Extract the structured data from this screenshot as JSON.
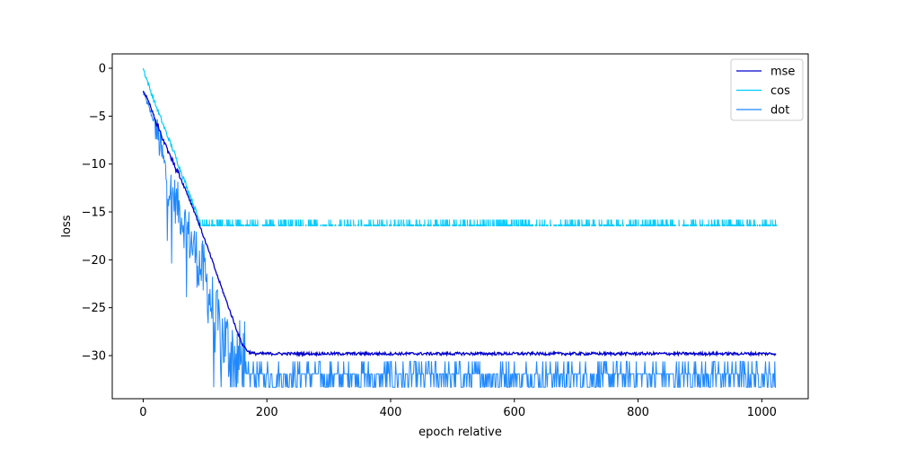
{
  "chart_data": {
    "type": "line",
    "title": "",
    "xlabel": "epoch relative",
    "ylabel": "loss",
    "xlim": [
      -50,
      1075
    ],
    "ylim": [
      -34.5,
      1.5
    ],
    "xticks": [
      0,
      200,
      400,
      600,
      800,
      1000
    ],
    "yticks": [
      0,
      -5,
      -10,
      -15,
      -20,
      -25,
      -30
    ],
    "xtick_labels": [
      "0",
      "200",
      "400",
      "600",
      "800",
      "1000"
    ],
    "ytick_labels": [
      "0",
      "−5",
      "−10",
      "−15",
      "−20",
      "−25",
      "−30"
    ],
    "grid": false,
    "legend_position": "top-right",
    "series": [
      {
        "name": "mse",
        "color": "#0000cd",
        "x": [
          0,
          10,
          20,
          30,
          40,
          50,
          60,
          70,
          80,
          90,
          100,
          110,
          120,
          130,
          140,
          150,
          160,
          170,
          180,
          200,
          250,
          300,
          400,
          500,
          600,
          700,
          800,
          900,
          1000,
          1023
        ],
        "y": [
          -2.3,
          -3.7,
          -5.5,
          -7.2,
          -8.6,
          -10.0,
          -11.4,
          -12.9,
          -14.5,
          -16.2,
          -18.0,
          -19.8,
          -21.7,
          -23.5,
          -25.3,
          -27.1,
          -28.8,
          -29.6,
          -29.8,
          -29.8,
          -29.8,
          -29.8,
          -29.8,
          -29.8,
          -29.8,
          -29.8,
          -29.8,
          -29.8,
          -29.8,
          -29.8
        ],
        "noise": 0.15
      },
      {
        "name": "cos",
        "color": "#00ccff",
        "x": [
          0,
          10,
          20,
          30,
          40,
          50,
          60,
          70,
          80,
          90,
          100,
          200,
          300,
          400,
          500,
          600,
          700,
          800,
          900,
          1000,
          1023
        ],
        "y": [
          0.0,
          -2.0,
          -3.8,
          -5.5,
          -7.2,
          -8.8,
          -10.6,
          -12.3,
          -14.0,
          -15.8,
          -16.5,
          -16.5,
          -16.5,
          -16.5,
          -16.5,
          -16.5,
          -16.5,
          -16.5,
          -16.5,
          -16.5,
          -16.5
        ],
        "levels": [
          -16.5,
          -15.8
        ]
      },
      {
        "name": "dot",
        "color": "#1e88ff",
        "x": [
          0,
          20,
          40,
          60,
          80,
          100,
          120,
          140,
          160,
          180,
          200,
          400,
          600,
          800,
          1000,
          1023
        ],
        "y": [
          -2.5,
          -6.0,
          -12.0,
          -15.0,
          -18.5,
          -22.0,
          -27.0,
          -29.5,
          -31.0,
          -31.5,
          -31.5,
          -31.5,
          -31.5,
          -31.5,
          -31.5,
          -31.5
        ],
        "levels": [
          -33.3,
          -31.9,
          -30.6
        ]
      }
    ]
  }
}
